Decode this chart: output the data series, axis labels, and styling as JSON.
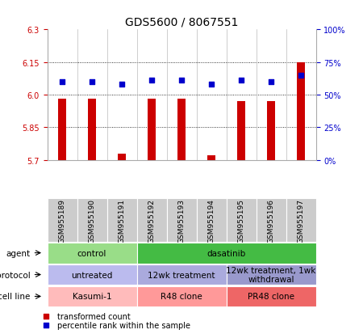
{
  "title": "GDS5600 / 8067551",
  "samples": [
    "GSM955189",
    "GSM955190",
    "GSM955191",
    "GSM955192",
    "GSM955193",
    "GSM955194",
    "GSM955195",
    "GSM955196",
    "GSM955197"
  ],
  "bar_values": [
    5.98,
    5.98,
    5.73,
    5.98,
    5.98,
    5.72,
    5.97,
    5.97,
    6.15
  ],
  "dot_values": [
    60,
    60,
    58,
    61,
    61,
    58,
    61,
    60,
    65
  ],
  "ylim": [
    5.7,
    6.3
  ],
  "y_ticks": [
    5.7,
    5.85,
    6.0,
    6.15,
    6.3
  ],
  "y2_ticks": [
    0,
    25,
    50,
    75,
    100
  ],
  "y2_labels": [
    "0%",
    "25%",
    "50%",
    "75%",
    "100%"
  ],
  "bar_color": "#cc0000",
  "dot_color": "#0000cc",
  "bar_bottom": 5.7,
  "agent_groups": [
    {
      "label": "control",
      "start": 0,
      "end": 3,
      "color": "#99dd88"
    },
    {
      "label": "dasatinib",
      "start": 3,
      "end": 9,
      "color": "#44bb44"
    }
  ],
  "protocol_groups": [
    {
      "label": "untreated",
      "start": 0,
      "end": 3,
      "color": "#bbbbee"
    },
    {
      "label": "12wk treatment",
      "start": 3,
      "end": 6,
      "color": "#aaaadd"
    },
    {
      "label": "12wk treatment, 1wk\nwithdrawal",
      "start": 6,
      "end": 9,
      "color": "#9999cc"
    }
  ],
  "cellline_groups": [
    {
      "label": "Kasumi-1",
      "start": 0,
      "end": 3,
      "color": "#ffbbbb"
    },
    {
      "label": "R48 clone",
      "start": 3,
      "end": 6,
      "color": "#ff9999"
    },
    {
      "label": "PR48 clone",
      "start": 6,
      "end": 9,
      "color": "#ee6666"
    }
  ],
  "row_labels": [
    "agent",
    "protocol",
    "cell line"
  ],
  "sample_bg": "#cccccc",
  "legend_items": [
    {
      "label": "transformed count",
      "color": "#cc0000"
    },
    {
      "label": "percentile rank within the sample",
      "color": "#0000cc"
    }
  ],
  "tick_color_left": "#cc0000",
  "tick_color_right": "#0000cc",
  "bg_color": "#ffffff",
  "title_fontsize": 10,
  "tick_fontsize": 7,
  "sample_fontsize": 6.5,
  "annotation_fontsize": 7.5,
  "row_label_fontsize": 7.5
}
